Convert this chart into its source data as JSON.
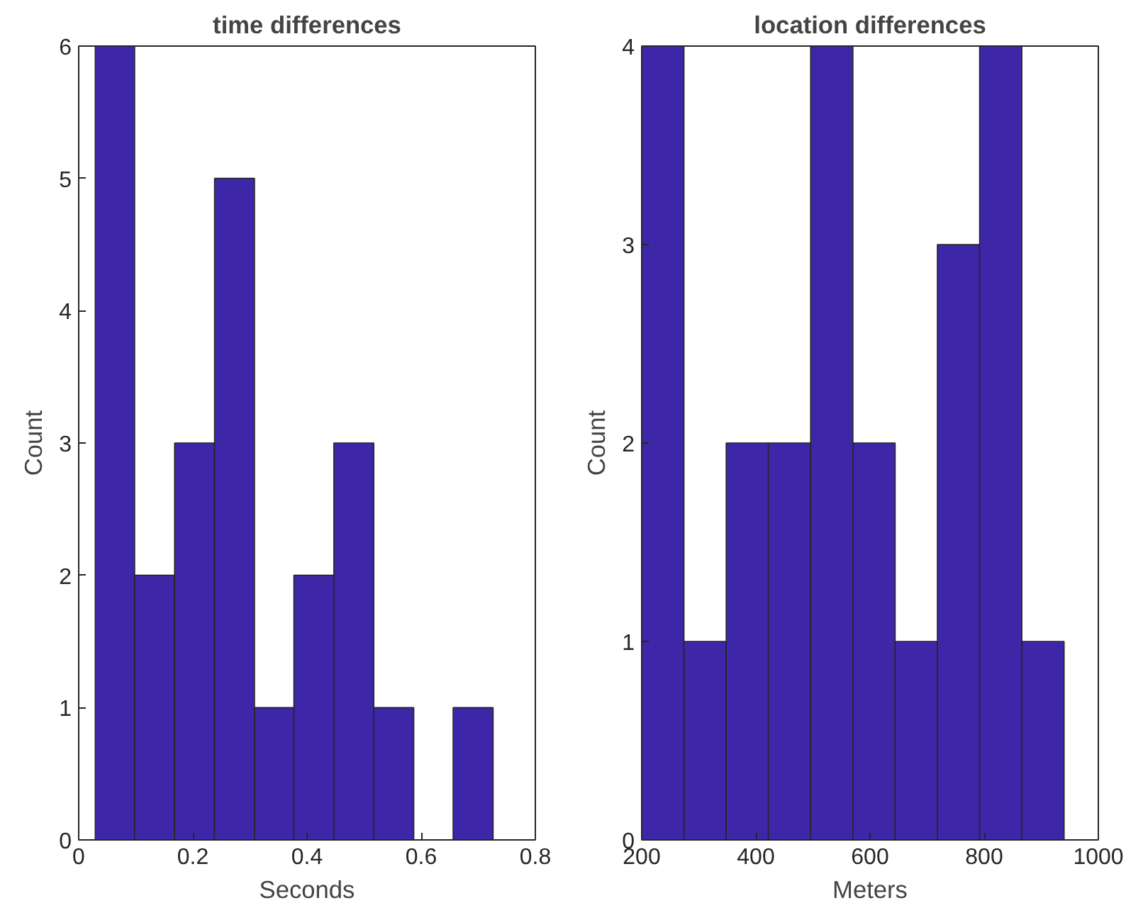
{
  "chart_data": [
    {
      "type": "histogram",
      "title": "time differences",
      "xlabel": "Seconds",
      "ylabel": "Count",
      "bins": [
        0.029,
        0.098,
        0.168,
        0.238,
        0.308,
        0.377,
        0.447,
        0.517,
        0.587,
        0.656,
        0.726
      ],
      "values": [
        6,
        2,
        3,
        5,
        1,
        2,
        3,
        1,
        0,
        1
      ],
      "color": "#3e26a8",
      "xlim": [
        0,
        0.8
      ],
      "ylim": [
        0,
        6
      ],
      "xticks": [
        0,
        0.2,
        0.4,
        0.6,
        0.8
      ],
      "yticks": [
        0,
        1,
        2,
        3,
        4,
        5,
        6
      ]
    },
    {
      "type": "histogram",
      "title": "location differences",
      "xlabel": "Meters",
      "ylabel": "Count",
      "bins": [
        200,
        274,
        348,
        422,
        496,
        570,
        644,
        718,
        792,
        866,
        940
      ],
      "values": [
        4,
        1,
        2,
        2,
        4,
        2,
        1,
        3,
        4,
        1
      ],
      "color": "#3e26a8",
      "xlim": [
        200,
        1000
      ],
      "ylim": [
        0,
        4
      ],
      "xticks": [
        200,
        400,
        600,
        800,
        1000
      ],
      "yticks": [
        0,
        1,
        2,
        3,
        4
      ]
    }
  ]
}
